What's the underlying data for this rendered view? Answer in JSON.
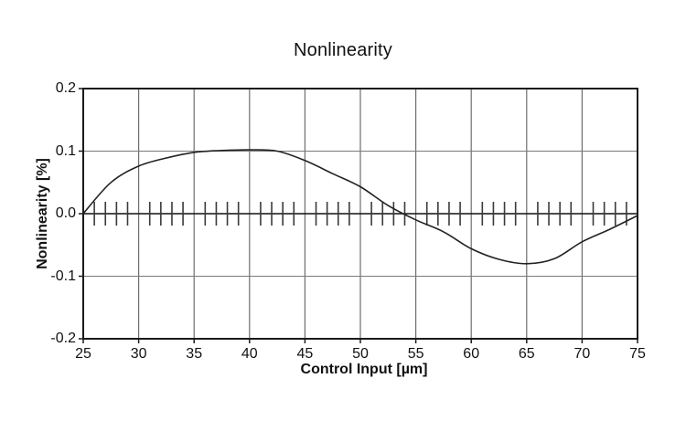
{
  "chart": {
    "title": "Nonlinearity",
    "xlabel": "Control Input [µm]",
    "ylabel": "Nonlinearity [%]"
  },
  "chart_data": {
    "type": "line",
    "title": "Nonlinearity",
    "xlabel": "Control Input [µm]",
    "ylabel": "Nonlinearity [%]",
    "xlim": [
      25,
      75
    ],
    "ylim": [
      -0.2,
      0.2
    ],
    "x_ticks": [
      25,
      30,
      35,
      40,
      45,
      50,
      55,
      60,
      65,
      70,
      75
    ],
    "y_ticks": [
      0.2,
      0.1,
      0.0,
      -0.1,
      -0.2
    ],
    "y_tick_labels": [
      "0.2",
      "0.1",
      "0.0",
      "-0.1",
      "-0.2"
    ],
    "grid": true,
    "legend": "none",
    "zero_line": true,
    "zero_line_minor_ticks": {
      "start": 25,
      "end": 75,
      "step": 1
    },
    "series": [
      {
        "name": "nonlinearity",
        "x": [
          25,
          27.5,
          30,
          32.5,
          35,
          37.5,
          40,
          42.5,
          45,
          47.5,
          50,
          52.5,
          55,
          57.5,
          60,
          62.5,
          65,
          67.5,
          70,
          72.5,
          75
        ],
        "y": [
          0.0,
          0.05,
          0.076,
          0.089,
          0.098,
          0.101,
          0.102,
          0.1,
          0.085,
          0.064,
          0.043,
          0.013,
          -0.01,
          -0.029,
          -0.056,
          -0.073,
          -0.08,
          -0.072,
          -0.045,
          -0.025,
          -0.003
        ]
      }
    ],
    "colors": {
      "background": "#ffffff",
      "frame": "#1a1a1a",
      "gridline": "#6e6e6e",
      "h_gridline": "#7a7a7a",
      "zero_line": "#111111",
      "minor_tick": "#3a3a3a",
      "curve": "#222222",
      "text": "#111111"
    }
  }
}
